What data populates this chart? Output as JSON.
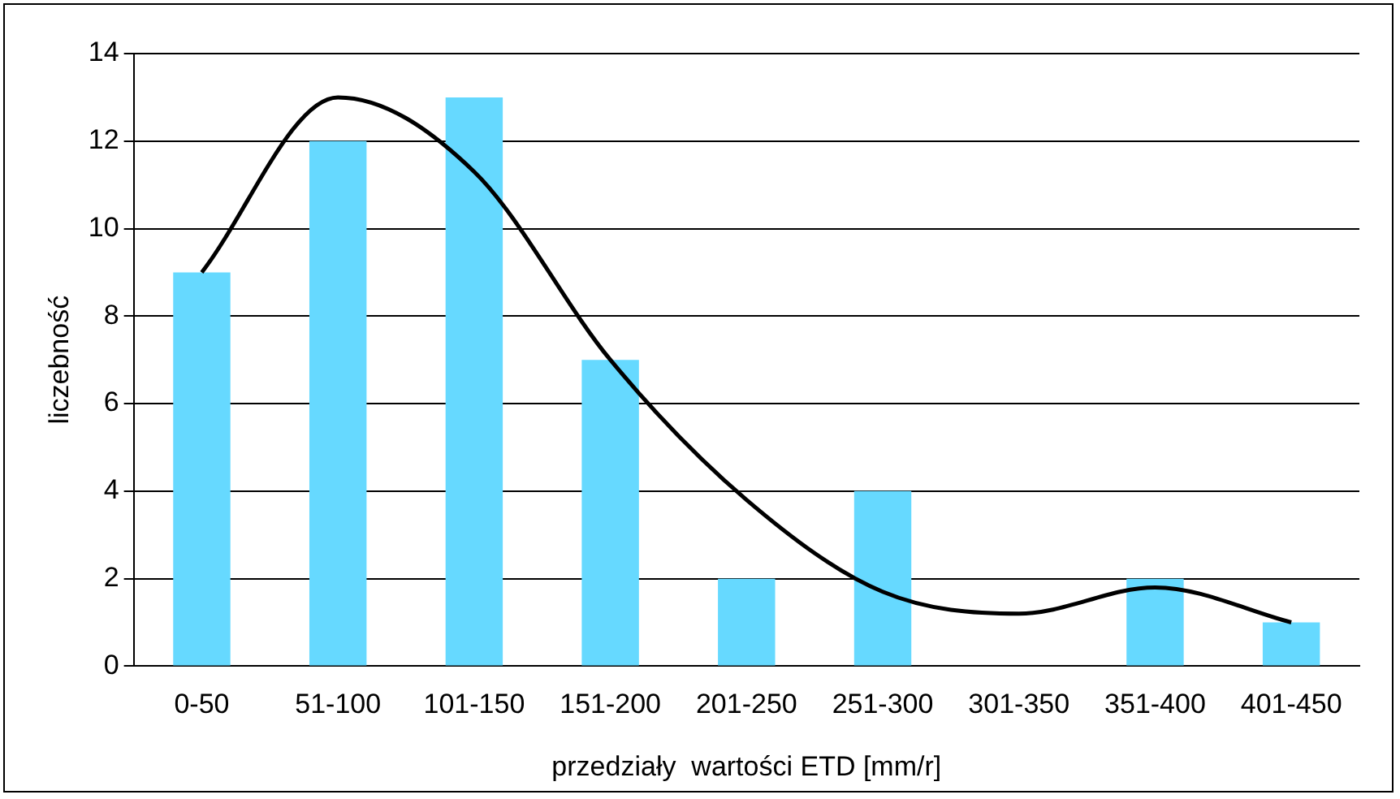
{
  "chart_data": {
    "type": "bar",
    "xlabel": "przedziały  wartości ETD [mm/r]",
    "ylabel": "liczebność",
    "categories": [
      "0-50",
      "51-100",
      "101-150",
      "151-200",
      "201-250",
      "251-300",
      "301-350",
      "351-400",
      "401-450"
    ],
    "series": [
      {
        "color": "#66d9ff",
        "values": [
          9,
          12,
          13,
          7,
          2,
          4,
          0,
          2,
          1
        ]
      },
      {
        "type": "line",
        "color": "#000000",
        "marker": "none",
        "values": [
          9,
          13,
          11.3,
          7,
          3.8,
          1.7,
          1.2,
          1.8,
          1
        ]
      }
    ],
    "ylim": [
      0,
      14
    ],
    "yticks": [
      0,
      2,
      4,
      6,
      8,
      10,
      12,
      14
    ],
    "grid": "y",
    "legend": false
  }
}
